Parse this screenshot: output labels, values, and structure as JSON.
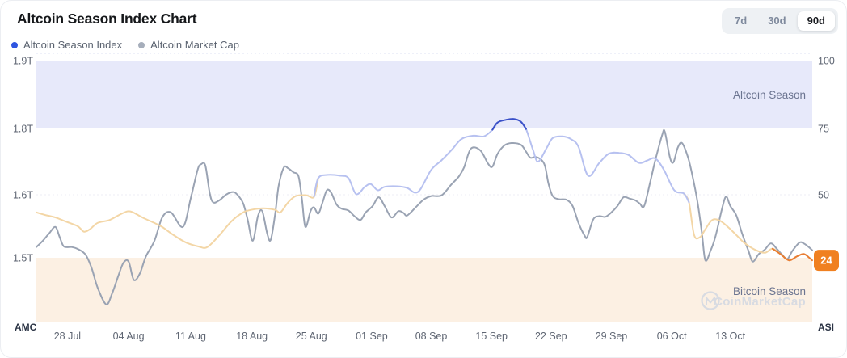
{
  "header": {
    "title": "Altcoin Season Index Chart"
  },
  "range": {
    "options": [
      "7d",
      "30d",
      "90d"
    ],
    "selected": "90d"
  },
  "legend": {
    "items": [
      {
        "label": "Altcoin Season Index",
        "color": "#2f55e0"
      },
      {
        "label": "Altcoin Market Cap",
        "color": "#a6aebb"
      }
    ]
  },
  "watermark": {
    "text": "CoinMarketCap",
    "icon": "coinmarketcap-logo"
  },
  "chart_data": {
    "type": "line",
    "title": "Altcoin Season Index Chart",
    "x_range_days": 90,
    "x_tick_labels": [
      "28 Jul",
      "04 Aug",
      "11 Aug",
      "18 Aug",
      "25 Aug",
      "01 Sep",
      "08 Sep",
      "15 Sep",
      "22 Sep",
      "29 Sep",
      "06 Oct",
      "13 Oct"
    ],
    "x_tick_days": [
      3.6,
      10.7,
      17.9,
      25.0,
      31.9,
      38.9,
      45.8,
      52.8,
      59.7,
      66.7,
      73.7,
      80.5
    ],
    "left_axis": {
      "name": "Altcoin Market Cap",
      "ticks": [
        {
          "label": "1.9T",
          "t": 1.9
        },
        {
          "label": "1.8T",
          "t": 1.8
        },
        {
          "label": "1.6T",
          "t": 1.6
        },
        {
          "label": "1.5T",
          "t": 1.5
        }
      ]
    },
    "right_axis": {
      "name": "Altcoin Season Index",
      "ticks": [
        {
          "label": "100",
          "v": 100
        },
        {
          "label": "75",
          "v": 75
        },
        {
          "label": "50",
          "v": 50
        }
      ]
    },
    "bands": [
      {
        "label": "Altcoin Season",
        "from": 75,
        "to": 100,
        "color": "#e7e9fa"
      },
      {
        "label": "Bitcoin Season",
        "from": 0,
        "to": 25,
        "color": "#fcf0e3"
      }
    ],
    "current_asi_value": 24,
    "corner_labels": {
      "left": "AMC",
      "right": "ASI"
    },
    "colors": {
      "amc_line": "#9aa3b3",
      "asi_high": "#3a50c8",
      "asi_mid": "#b7c1f0",
      "asi_low": "#f3d6a6",
      "asi_end": "#e87d32",
      "badge_bg": "#f08020",
      "badge_text": "#ffffff",
      "axis_text": "#5f6673",
      "corner_text": "#2b3445",
      "band_text": "#6b7490",
      "watermark": "#d8dbe2",
      "grid": "#dde1f3"
    },
    "asi_thresholds": {
      "high": 75,
      "mid": 50,
      "end_below": 26.8
    },
    "series": [
      {
        "name": "Altcoin Season Index",
        "axis": "right",
        "points": [
          [
            0,
            43
          ],
          [
            1,
            42
          ],
          [
            2.2,
            41
          ],
          [
            3.4,
            39.4
          ],
          [
            4.8,
            37.5
          ],
          [
            5.5,
            35.4
          ],
          [
            6.2,
            36.3
          ],
          [
            7.1,
            38.8
          ],
          [
            8.5,
            40
          ],
          [
            9.9,
            42.5
          ],
          [
            10.9,
            43.4
          ],
          [
            12.3,
            41
          ],
          [
            13.7,
            38.8
          ],
          [
            14.6,
            37.2
          ],
          [
            16,
            33.8
          ],
          [
            17.4,
            31
          ],
          [
            18.8,
            29.5
          ],
          [
            19.8,
            29.2
          ],
          [
            21.2,
            33.8
          ],
          [
            22.6,
            39.4
          ],
          [
            24,
            43
          ],
          [
            24.9,
            44
          ],
          [
            26.3,
            44.6
          ],
          [
            27.7,
            44
          ],
          [
            28.3,
            43
          ],
          [
            29.2,
            47
          ],
          [
            30.1,
            49.5
          ],
          [
            31.3,
            49.8
          ],
          [
            32.2,
            49.2
          ],
          [
            32.7,
            56.3
          ],
          [
            33.8,
            57.5
          ],
          [
            35.2,
            57.2
          ],
          [
            36.2,
            56.3
          ],
          [
            37.1,
            50.2
          ],
          [
            38.1,
            53
          ],
          [
            38.8,
            54
          ],
          [
            39.6,
            51.7
          ],
          [
            40.4,
            53
          ],
          [
            41.8,
            53.2
          ],
          [
            43,
            52.6
          ],
          [
            43.9,
            50.8
          ],
          [
            44.6,
            52.3
          ],
          [
            45.8,
            59.4
          ],
          [
            47,
            63
          ],
          [
            48.2,
            67
          ],
          [
            49.3,
            71
          ],
          [
            50.7,
            72.3
          ],
          [
            51.9,
            72
          ],
          [
            52.9,
            74.5
          ],
          [
            53.5,
            77.2
          ],
          [
            54.5,
            78.2
          ],
          [
            55.4,
            78.5
          ],
          [
            56.2,
            77.5
          ],
          [
            56.8,
            74.8
          ],
          [
            57.6,
            67
          ],
          [
            58.2,
            62.5
          ],
          [
            59.2,
            67.7
          ],
          [
            59.9,
            71.4
          ],
          [
            61,
            72
          ],
          [
            62,
            71
          ],
          [
            62.9,
            68
          ],
          [
            64,
            57.2
          ],
          [
            65.3,
            62
          ],
          [
            66.4,
            65.5
          ],
          [
            67.6,
            65.8
          ],
          [
            68.7,
            65
          ],
          [
            69.9,
            62
          ],
          [
            70.9,
            63
          ],
          [
            71.8,
            63.7
          ],
          [
            72.8,
            59.4
          ],
          [
            74,
            51.7
          ],
          [
            75.1,
            50.5
          ],
          [
            75.7,
            47
          ],
          [
            76.3,
            34
          ],
          [
            77,
            33.2
          ],
          [
            77.6,
            36.3
          ],
          [
            78.4,
            40
          ],
          [
            79.3,
            39.7
          ],
          [
            80.3,
            37
          ],
          [
            81.2,
            34
          ],
          [
            82.1,
            31
          ],
          [
            83.3,
            28.3
          ],
          [
            84.5,
            27
          ],
          [
            85.4,
            28.6
          ],
          [
            86.3,
            26.5
          ],
          [
            87.3,
            24
          ],
          [
            88.2,
            25.5
          ],
          [
            89,
            26.5
          ],
          [
            89.6,
            25.2
          ],
          [
            90,
            24
          ]
        ]
      },
      {
        "name": "Altcoin Market Cap",
        "axis": "left",
        "points": [
          [
            0,
            1.517
          ],
          [
            0.75,
            1.527
          ],
          [
            1.5,
            1.539
          ],
          [
            2.2,
            1.549
          ],
          [
            2.7,
            1.533
          ],
          [
            3.2,
            1.518
          ],
          [
            4.1,
            1.517
          ],
          [
            4.8,
            1.514
          ],
          [
            5.7,
            1.505
          ],
          [
            6.4,
            1.484
          ],
          [
            7.1,
            1.453
          ],
          [
            8.1,
            1.426
          ],
          [
            8.8,
            1.444
          ],
          [
            9.5,
            1.471
          ],
          [
            10.1,
            1.492
          ],
          [
            10.7,
            1.494
          ],
          [
            11.3,
            1.465
          ],
          [
            12,
            1.475
          ],
          [
            12.7,
            1.502
          ],
          [
            13.7,
            1.527
          ],
          [
            14.6,
            1.564
          ],
          [
            15.6,
            1.572
          ],
          [
            17,
            1.549
          ],
          [
            17.9,
            1.594
          ],
          [
            18.7,
            1.675
          ],
          [
            19.1,
            1.692
          ],
          [
            19.6,
            1.688
          ],
          [
            20.1,
            1.606
          ],
          [
            20.5,
            1.588
          ],
          [
            21.2,
            1.591
          ],
          [
            22.1,
            1.602
          ],
          [
            22.9,
            1.608
          ],
          [
            23.5,
            1.597
          ],
          [
            24,
            1.586
          ],
          [
            24.5,
            1.561
          ],
          [
            25.1,
            1.527
          ],
          [
            25.7,
            1.566
          ],
          [
            26.2,
            1.574
          ],
          [
            26.8,
            1.537
          ],
          [
            27.2,
            1.529
          ],
          [
            27.7,
            1.57
          ],
          [
            28.1,
            1.626
          ],
          [
            28.7,
            1.682
          ],
          [
            29.2,
            1.68
          ],
          [
            29.8,
            1.668
          ],
          [
            30.4,
            1.656
          ],
          [
            30.8,
            1.594
          ],
          [
            31.2,
            1.549
          ],
          [
            31.8,
            1.574
          ],
          [
            32.2,
            1.58
          ],
          [
            32.7,
            1.57
          ],
          [
            33.2,
            1.588
          ],
          [
            33.7,
            1.614
          ],
          [
            34.2,
            1.606
          ],
          [
            34.8,
            1.585
          ],
          [
            35.4,
            1.578
          ],
          [
            36.2,
            1.575
          ],
          [
            36.9,
            1.566
          ],
          [
            37.6,
            1.56
          ],
          [
            38.2,
            1.572
          ],
          [
            39,
            1.582
          ],
          [
            39.7,
            1.596
          ],
          [
            40.4,
            1.582
          ],
          [
            41.2,
            1.564
          ],
          [
            42,
            1.574
          ],
          [
            42.6,
            1.571
          ],
          [
            43,
            1.567
          ],
          [
            44,
            1.58
          ],
          [
            44.9,
            1.592
          ],
          [
            45.8,
            1.598
          ],
          [
            47,
            1.599
          ],
          [
            48.1,
            1.63
          ],
          [
            49,
            1.655
          ],
          [
            49.6,
            1.682
          ],
          [
            50.4,
            1.739
          ],
          [
            51.5,
            1.734
          ],
          [
            52.4,
            1.694
          ],
          [
            52.9,
            1.685
          ],
          [
            53.5,
            1.724
          ],
          [
            54.3,
            1.749
          ],
          [
            55.1,
            1.756
          ],
          [
            56.2,
            1.751
          ],
          [
            56.8,
            1.73
          ],
          [
            57.3,
            1.712
          ],
          [
            57.9,
            1.714
          ],
          [
            58.5,
            1.707
          ],
          [
            59,
            1.687
          ],
          [
            59.4,
            1.634
          ],
          [
            59.9,
            1.598
          ],
          [
            60.6,
            1.593
          ],
          [
            61.5,
            1.592
          ],
          [
            62.2,
            1.582
          ],
          [
            62.9,
            1.555
          ],
          [
            63.6,
            1.535
          ],
          [
            63.9,
            1.533
          ],
          [
            64.6,
            1.561
          ],
          [
            65.3,
            1.566
          ],
          [
            66,
            1.565
          ],
          [
            66.7,
            1.572
          ],
          [
            67.4,
            1.582
          ],
          [
            68.1,
            1.596
          ],
          [
            68.8,
            1.594
          ],
          [
            69.5,
            1.591
          ],
          [
            70,
            1.586
          ],
          [
            70.5,
            1.582
          ],
          [
            71.2,
            1.638
          ],
          [
            71.8,
            1.705
          ],
          [
            72.6,
            1.781
          ],
          [
            72.9,
            1.79
          ],
          [
            73.5,
            1.712
          ],
          [
            73.9,
            1.698
          ],
          [
            74.4,
            1.742
          ],
          [
            74.9,
            1.756
          ],
          [
            75.6,
            1.712
          ],
          [
            76.1,
            1.658
          ],
          [
            76.7,
            1.588
          ],
          [
            77.2,
            1.539
          ],
          [
            77.6,
            1.496
          ],
          [
            78.2,
            1.511
          ],
          [
            78.8,
            1.535
          ],
          [
            79.5,
            1.576
          ],
          [
            80,
            1.597
          ],
          [
            80.5,
            1.582
          ],
          [
            81.2,
            1.567
          ],
          [
            81.9,
            1.537
          ],
          [
            82.6,
            1.511
          ],
          [
            83.1,
            1.494
          ],
          [
            83.8,
            1.506
          ],
          [
            84.5,
            1.513
          ],
          [
            85.2,
            1.523
          ],
          [
            85.9,
            1.514
          ],
          [
            86.5,
            1.505
          ],
          [
            87.1,
            1.498
          ],
          [
            87.7,
            1.511
          ],
          [
            88.5,
            1.524
          ],
          [
            89,
            1.523
          ],
          [
            89.6,
            1.517
          ],
          [
            90,
            1.512
          ]
        ]
      }
    ]
  }
}
